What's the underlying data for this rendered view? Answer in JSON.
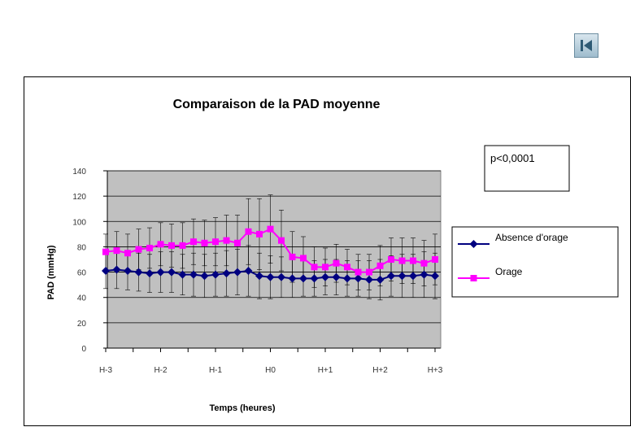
{
  "nav": {
    "icon": "skip-to-start-icon"
  },
  "chart_data": {
    "type": "line",
    "title": "Comparaison de la PAD moyenne",
    "xlabel": "Temps (heures)",
    "ylabel": "PAD (mmHg)",
    "ylim": [
      0,
      140
    ],
    "yticks": [
      "0",
      "20",
      "40",
      "60",
      "80",
      "100",
      "120",
      "140"
    ],
    "xticks": [
      "H-3",
      "H-2",
      "H-1",
      "H0",
      "H+1",
      "H+2",
      "H+3"
    ],
    "xlim": [
      -3,
      3
    ],
    "grid": true,
    "plot_background": "#c0c0c0",
    "legend_position": "right",
    "annotation": "p<0,0001",
    "series": [
      {
        "name": "Absence d'orage",
        "color": "#000080",
        "marker": "diamond",
        "x": [
          -3,
          -2.8,
          -2.6,
          -2.4,
          -2.2,
          -2,
          -1.8,
          -1.6,
          -1.4,
          -1.2,
          -1,
          -0.8,
          -0.6,
          -0.4,
          -0.2,
          0,
          0.2,
          0.4,
          0.6,
          0.8,
          1,
          1.2,
          1.4,
          1.6,
          1.8,
          2,
          2.2,
          2.4,
          2.6,
          2.8,
          3
        ],
        "values": [
          61,
          62,
          61,
          60,
          59,
          60,
          60,
          58,
          58,
          57,
          58,
          59,
          60,
          61,
          57,
          56,
          56,
          55,
          55,
          55,
          56,
          56,
          55,
          55,
          54,
          54,
          57,
          57,
          57,
          58,
          57
        ],
        "errors": [
          14,
          15,
          15,
          15,
          15,
          16,
          16,
          16,
          17,
          17,
          17,
          18,
          18,
          20,
          18,
          17,
          16,
          15,
          14,
          14,
          14,
          14,
          14,
          14,
          15,
          16,
          16,
          17,
          17,
          18,
          18
        ]
      },
      {
        "name": "Orage",
        "color": "#ff00ff",
        "marker": "square",
        "x": [
          -3,
          -2.8,
          -2.6,
          -2.4,
          -2.2,
          -2,
          -1.8,
          -1.6,
          -1.4,
          -1.2,
          -1,
          -0.8,
          -0.6,
          -0.4,
          -0.2,
          0,
          0.2,
          0.4,
          0.6,
          0.8,
          1,
          1.2,
          1.4,
          1.6,
          1.8,
          2,
          2.2,
          2.4,
          2.6,
          2.8,
          3
        ],
        "values": [
          76,
          77,
          75,
          78,
          79,
          82,
          81,
          81,
          84,
          83,
          84,
          85,
          83,
          92,
          90,
          94,
          85,
          72,
          71,
          64,
          64,
          67,
          64,
          60,
          60,
          65,
          70,
          69,
          69,
          67,
          70
        ],
        "errors": [
          14,
          15,
          15,
          16,
          16,
          17,
          17,
          18,
          18,
          18,
          19,
          20,
          22,
          26,
          28,
          27,
          24,
          20,
          17,
          16,
          15,
          15,
          14,
          14,
          14,
          16,
          17,
          18,
          18,
          18,
          20
        ]
      }
    ]
  }
}
